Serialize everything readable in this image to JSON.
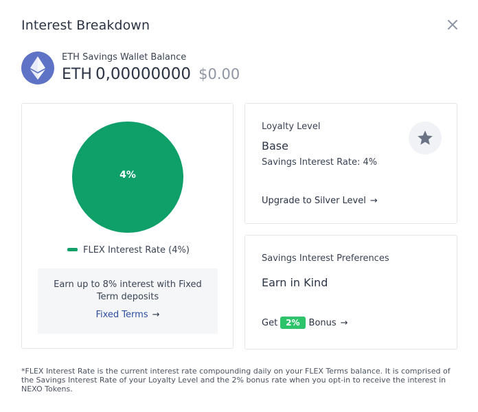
{
  "modal": {
    "title": "Interest Breakdown",
    "close_icon": "close-icon"
  },
  "wallet": {
    "icon": "ethereum-icon",
    "label": "ETH Savings Wallet Balance",
    "currency": "ETH",
    "amount": "0,00000000",
    "fiat": "$0.00",
    "icon_color": "#5e73c6"
  },
  "chart_data": {
    "type": "pie",
    "slices": [
      {
        "label": "FLEX Interest Rate (4%)",
        "value": 4,
        "display": "4%",
        "color": "#0fa06a"
      }
    ],
    "legend": [
      "FLEX Interest Rate (4%)"
    ]
  },
  "interest_chart": {
    "center_label": "4%",
    "legend_label": "FLEX Interest Rate (4%)"
  },
  "promo": {
    "text": "Earn up to 8% interest with Fixed Term deposits",
    "link": "Fixed Terms"
  },
  "loyalty": {
    "label": "Loyalty Level",
    "level": "Base",
    "rate": "Savings Interest Rate: 4%",
    "upgrade_link": "Upgrade to Silver Level",
    "badge_icon": "star-icon"
  },
  "preferences": {
    "label": "Savings Interest Preferences",
    "value": "Earn in Kind",
    "bonus_prefix": "Get",
    "bonus_pill": "2%",
    "bonus_suffix": "Bonus"
  },
  "footnote": "*FLEX Interest Rate is the current interest rate compounding daily on your FLEX Terms balance. It is comprised of the Savings Interest Rate of your Loyalty Level and the 2% bonus rate when you opt-in to receive the interest in NEXO Tokens.",
  "colors": {
    "accent_green": "#0fa06a",
    "pill_green": "#2cc36b",
    "link_blue": "#2c4d9e"
  }
}
